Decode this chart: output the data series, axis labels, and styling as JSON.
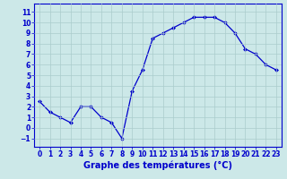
{
  "x": [
    0,
    1,
    2,
    3,
    4,
    5,
    6,
    7,
    8,
    9,
    10,
    11,
    12,
    13,
    14,
    15,
    16,
    17,
    18,
    19,
    20,
    21,
    22,
    23
  ],
  "y": [
    2.5,
    1.5,
    1.0,
    0.5,
    2.0,
    2.0,
    1.0,
    0.5,
    -1.0,
    3.5,
    5.5,
    8.5,
    9.0,
    9.5,
    10.0,
    10.5,
    10.5,
    10.5,
    10.0,
    9.0,
    7.5,
    7.0,
    6.0,
    5.5
  ],
  "line_color": "#0000cc",
  "bg_color": "#cce8e8",
  "grid_color": "#aacccc",
  "xlabel": "Graphe des températures (°C)",
  "ylim": [
    -1.8,
    11.8
  ],
  "xlim": [
    -0.5,
    23.5
  ],
  "yticks": [
    -1,
    0,
    1,
    2,
    3,
    4,
    5,
    6,
    7,
    8,
    9,
    10,
    11
  ],
  "xticks": [
    0,
    1,
    2,
    3,
    4,
    5,
    6,
    7,
    8,
    9,
    10,
    11,
    12,
    13,
    14,
    15,
    16,
    17,
    18,
    19,
    20,
    21,
    22,
    23
  ],
  "tick_fontsize": 5.5,
  "xlabel_fontsize": 7.0,
  "marker": "D",
  "marker_size": 2.0,
  "line_width": 0.9
}
